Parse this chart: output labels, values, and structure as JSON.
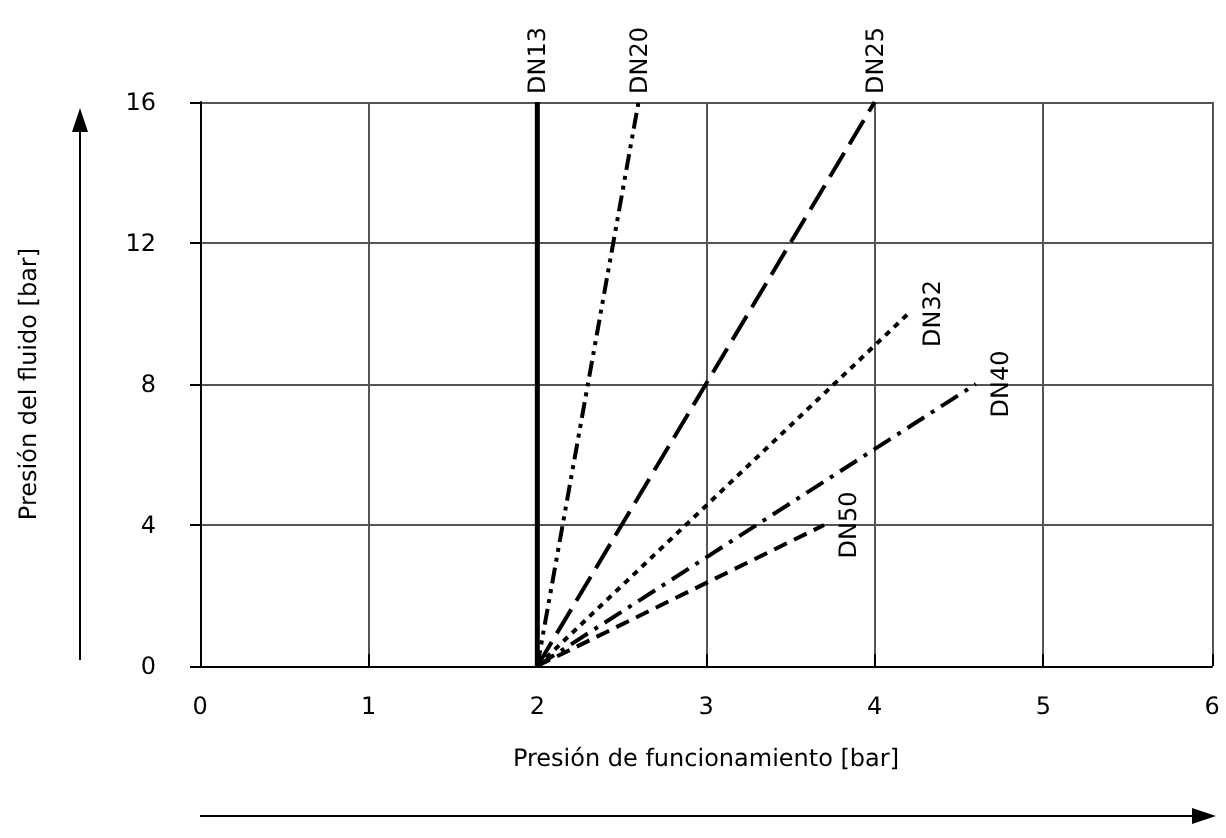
{
  "chart_data": {
    "type": "line",
    "xlabel": "Presión de funcionamiento [bar]",
    "ylabel": "Presión del fluido [bar]",
    "xlim": [
      0,
      6
    ],
    "xticks": [
      0,
      1,
      2,
      3,
      4,
      5,
      6
    ],
    "ylim": [
      0,
      16
    ],
    "yticks": [
      0,
      4,
      8,
      12,
      16
    ],
    "grid": true,
    "legend": false,
    "marker": "none",
    "series": [
      {
        "name": "DN13",
        "color": "#000000",
        "x": [
          2,
          2
        ],
        "values": [
          0,
          16
        ],
        "line_style": "solid"
      },
      {
        "name": "DN20",
        "color": "#000000",
        "x": [
          2,
          2.6
        ],
        "values": [
          0,
          16
        ],
        "line_style": "dashdotdot"
      },
      {
        "name": "DN25",
        "color": "#000000",
        "x": [
          2,
          4
        ],
        "values": [
          0,
          16
        ],
        "line_style": "longdash"
      },
      {
        "name": "DN32",
        "color": "#000000",
        "x": [
          2,
          4.2
        ],
        "values": [
          0,
          10
        ],
        "line_style": "dotted"
      },
      {
        "name": "DN40",
        "color": "#000000",
        "x": [
          2,
          4.6
        ],
        "values": [
          0,
          8
        ],
        "line_style": "dashdot"
      },
      {
        "name": "DN50",
        "color": "#000000",
        "x": [
          2,
          3.7
        ],
        "values": [
          0,
          4
        ],
        "line_style": "dashed"
      }
    ]
  }
}
